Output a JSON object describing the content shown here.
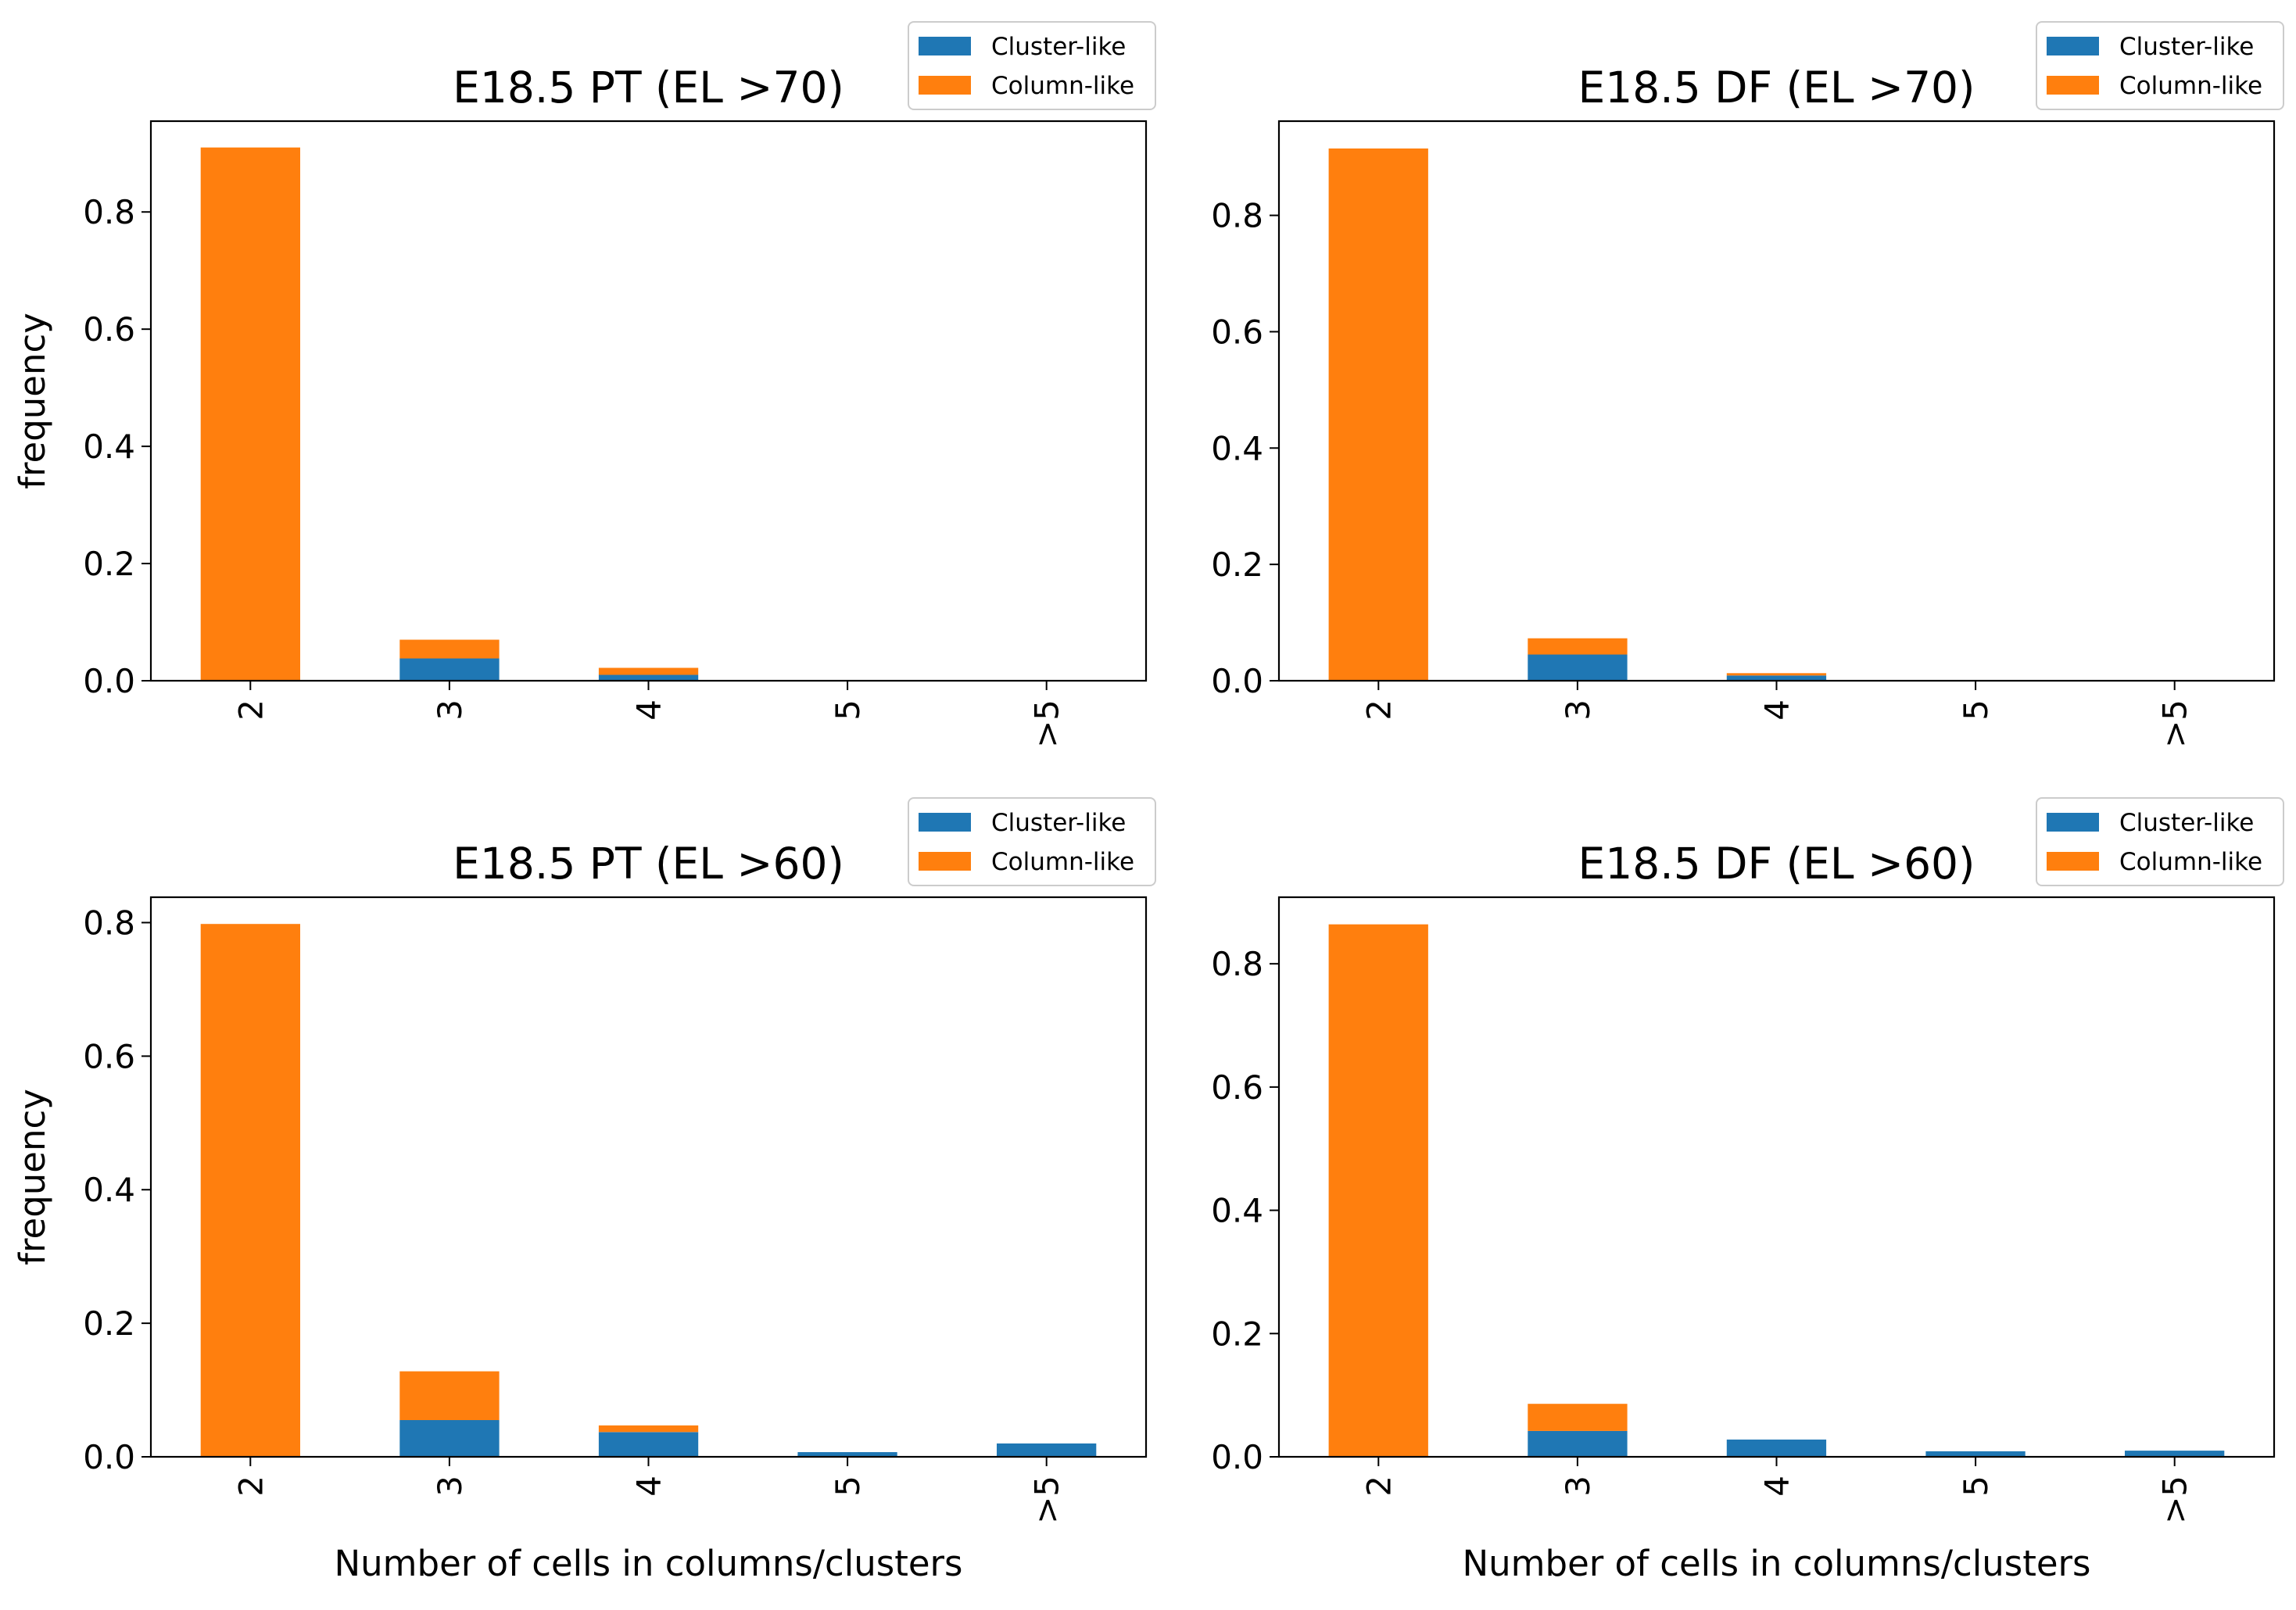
{
  "colors": {
    "cluster": "#1f77b4",
    "column": "#ff7f0e"
  },
  "chart_data": [
    {
      "type": "bar",
      "stacked": true,
      "title": "E18.5 PT (EL >70)",
      "xlabel": "",
      "ylabel": "frequency",
      "categories": [
        "2",
        "3",
        "4",
        "5",
        ">5"
      ],
      "series": [
        {
          "name": "Cluster-like",
          "values": [
            0.0,
            0.038,
            0.01,
            0.0,
            0.0
          ]
        },
        {
          "name": "Column-like",
          "values": [
            0.91,
            0.032,
            0.012,
            0.0,
            0.0
          ]
        }
      ],
      "ylim": [
        0,
        0.955
      ],
      "yticks": [
        0.0,
        0.2,
        0.4,
        0.6,
        0.8
      ],
      "ytick_labels": [
        "0.0",
        "0.2",
        "0.4",
        "0.6",
        "0.8"
      ],
      "legend": "top-right",
      "grid": false
    },
    {
      "type": "bar",
      "stacked": true,
      "title": "E18.5 DF (EL >70)",
      "xlabel": "",
      "ylabel": "",
      "categories": [
        "2",
        "3",
        "4",
        "5",
        ">5"
      ],
      "series": [
        {
          "name": "Cluster-like",
          "values": [
            0.0,
            0.045,
            0.009,
            0.0,
            0.0
          ]
        },
        {
          "name": "Column-like",
          "values": [
            0.915,
            0.028,
            0.004,
            0.0,
            0.0
          ]
        }
      ],
      "ylim": [
        0,
        0.962
      ],
      "yticks": [
        0.0,
        0.2,
        0.4,
        0.6,
        0.8
      ],
      "ytick_labels": [
        "0.0",
        "0.2",
        "0.4",
        "0.6",
        "0.8"
      ],
      "legend": "top-right",
      "grid": false
    },
    {
      "type": "bar",
      "stacked": true,
      "title": "E18.5 PT (EL >60)",
      "xlabel": "Number of cells in columns/clusters",
      "ylabel": "frequency",
      "categories": [
        "2",
        "3",
        "4",
        "5",
        ">5"
      ],
      "series": [
        {
          "name": "Cluster-like",
          "values": [
            0.0,
            0.055,
            0.037,
            0.007,
            0.02
          ]
        },
        {
          "name": "Column-like",
          "values": [
            0.798,
            0.073,
            0.01,
            0.0,
            0.0
          ]
        }
      ],
      "ylim": [
        0,
        0.838
      ],
      "yticks": [
        0.0,
        0.2,
        0.4,
        0.6,
        0.8
      ],
      "ytick_labels": [
        "0.0",
        "0.2",
        "0.4",
        "0.6",
        "0.8"
      ],
      "legend": "top-right",
      "grid": false
    },
    {
      "type": "bar",
      "stacked": true,
      "title": "E18.5 DF (EL >60)",
      "xlabel": "Number of cells in columns/clusters",
      "ylabel": "",
      "categories": [
        "2",
        "3",
        "4",
        "5",
        ">5"
      ],
      "series": [
        {
          "name": "Cluster-like",
          "values": [
            0.0,
            0.042,
            0.028,
            0.009,
            0.01
          ]
        },
        {
          "name": "Column-like",
          "values": [
            0.864,
            0.044,
            0.0,
            0.0,
            0.0
          ]
        }
      ],
      "ylim": [
        0,
        0.908
      ],
      "yticks": [
        0.0,
        0.2,
        0.4,
        0.6,
        0.8
      ],
      "ytick_labels": [
        "0.0",
        "0.2",
        "0.4",
        "0.6",
        "0.8"
      ],
      "legend": "top-right",
      "grid": false
    }
  ]
}
